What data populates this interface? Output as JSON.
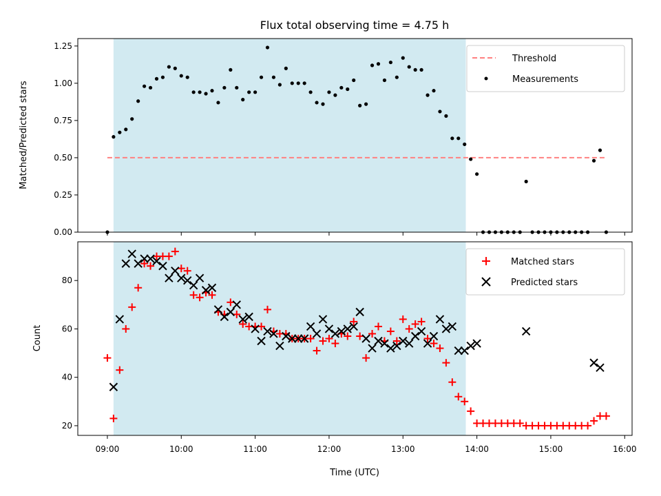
{
  "chart_data": {
    "title": "Flux total observing time = 4.75 h",
    "xlabel": "Time (UTC)",
    "x_unit": "hours UTC",
    "x_ticks": [
      "09:00",
      "10:00",
      "11:00",
      "12:00",
      "13:00",
      "14:00",
      "15:00",
      "16:00"
    ],
    "xlim": [
      "08:36",
      "16:06"
    ],
    "shaded_interval": [
      "09:05",
      "13:51"
    ],
    "colors": {
      "shade": "#add8e6",
      "threshold": "#ff8080",
      "measurements": "#000000",
      "matched": "#ff0000",
      "predicted": "#000000"
    },
    "panels": [
      {
        "type": "scatter",
        "ylabel": "Matched/Predicted stars",
        "ylim": [
          0,
          1.3
        ],
        "y_ticks": [
          "0.00",
          "0.25",
          "0.50",
          "0.75",
          "1.00",
          "1.25"
        ],
        "legend_position": "top-right",
        "series": [
          {
            "name": "Threshold",
            "kind": "dashed-line",
            "x": [
              "09:00",
              "15:45"
            ],
            "y": [
              0.5,
              0.5
            ]
          },
          {
            "name": "Measurements",
            "kind": "dot",
            "x": [
              "09:00",
              "09:05",
              "09:10",
              "09:15",
              "09:20",
              "09:25",
              "09:30",
              "09:35",
              "09:40",
              "09:45",
              "09:50",
              "09:55",
              "10:00",
              "10:05",
              "10:10",
              "10:15",
              "10:20",
              "10:25",
              "10:30",
              "10:35",
              "10:40",
              "10:45",
              "10:50",
              "10:55",
              "11:00",
              "11:05",
              "11:10",
              "11:15",
              "11:20",
              "11:25",
              "11:30",
              "11:35",
              "11:40",
              "11:45",
              "11:50",
              "11:55",
              "12:00",
              "12:05",
              "12:10",
              "12:15",
              "12:20",
              "12:25",
              "12:30",
              "12:35",
              "12:40",
              "12:45",
              "12:50",
              "12:55",
              "13:00",
              "13:05",
              "13:10",
              "13:15",
              "13:20",
              "13:25",
              "13:30",
              "13:35",
              "13:40",
              "13:45",
              "13:50",
              "13:55",
              "14:00",
              "14:05",
              "14:10",
              "14:15",
              "14:20",
              "14:25",
              "14:30",
              "14:35",
              "14:40",
              "14:45",
              "14:50",
              "14:55",
              "15:00",
              "15:05",
              "15:10",
              "15:15",
              "15:20",
              "15:25",
              "15:30",
              "15:35",
              "15:40",
              "15:45"
            ],
            "y": [
              0.0,
              0.64,
              0.67,
              0.69,
              0.76,
              0.88,
              0.98,
              0.97,
              1.03,
              1.04,
              1.11,
              1.1,
              1.05,
              1.04,
              0.94,
              0.94,
              0.93,
              0.95,
              0.87,
              0.97,
              1.09,
              0.97,
              0.89,
              0.94,
              0.94,
              1.04,
              1.24,
              1.04,
              0.99,
              1.1,
              1.0,
              1.0,
              1.0,
              0.94,
              0.87,
              0.86,
              0.94,
              0.92,
              0.97,
              0.96,
              1.02,
              0.85,
              0.86,
              1.12,
              1.13,
              1.02,
              1.14,
              1.04,
              1.17,
              1.11,
              1.09,
              1.09,
              0.92,
              0.95,
              0.81,
              0.78,
              0.63,
              0.63,
              0.59,
              0.49,
              0.39,
              0.0,
              0.0,
              0.0,
              0.0,
              0.0,
              0.0,
              0.0,
              0.34,
              0.0,
              0.0,
              0.0,
              0.0,
              0.0,
              0.0,
              0.0,
              0.0,
              0.0,
              0.0,
              0.48,
              0.55,
              0.0
            ]
          }
        ]
      },
      {
        "type": "scatter",
        "ylabel": "Count",
        "ylim": [
          16,
          96
        ],
        "y_ticks": [
          "20",
          "40",
          "60",
          "80"
        ],
        "legend_position": "top-right",
        "series": [
          {
            "name": "Matched stars",
            "marker": "plus",
            "x": [
              "09:00",
              "09:05",
              "09:10",
              "09:15",
              "09:20",
              "09:25",
              "09:30",
              "09:35",
              "09:40",
              "09:45",
              "09:50",
              "09:55",
              "10:00",
              "10:05",
              "10:10",
              "10:15",
              "10:20",
              "10:25",
              "10:30",
              "10:35",
              "10:40",
              "10:45",
              "10:50",
              "10:55",
              "11:00",
              "11:05",
              "11:10",
              "11:15",
              "11:20",
              "11:25",
              "11:30",
              "11:35",
              "11:40",
              "11:45",
              "11:50",
              "11:55",
              "12:00",
              "12:05",
              "12:10",
              "12:15",
              "12:20",
              "12:25",
              "12:30",
              "12:35",
              "12:40",
              "12:45",
              "12:50",
              "12:55",
              "13:00",
              "13:05",
              "13:10",
              "13:15",
              "13:20",
              "13:25",
              "13:30",
              "13:35",
              "13:40",
              "13:45",
              "13:50",
              "13:55",
              "14:00",
              "14:05",
              "14:10",
              "14:15",
              "14:20",
              "14:25",
              "14:30",
              "14:35",
              "14:40",
              "14:45",
              "14:50",
              "14:55",
              "15:00",
              "15:05",
              "15:10",
              "15:15",
              "15:20",
              "15:25",
              "15:30",
              "15:35",
              "15:40",
              "15:45"
            ],
            "y": [
              48,
              23,
              43,
              60,
              69,
              77,
              87,
              86,
              90,
              90,
              90,
              92,
              85,
              84,
              74,
              73,
              75,
              74,
              67,
              66,
              71,
              66,
              62,
              61,
              61,
              61,
              68,
              59,
              58,
              58,
              56,
              56,
              56,
              56,
              51,
              55,
              56,
              54,
              58,
              57,
              63,
              57,
              48,
              58,
              61,
              55,
              59,
              55,
              64,
              60,
              62,
              63,
              56,
              54,
              52,
              46,
              38,
              32,
              30,
              26,
              21,
              21,
              21,
              21,
              21,
              21,
              21,
              21,
              20,
              20,
              20,
              20,
              20,
              20,
              20,
              20,
              20,
              20,
              20,
              22,
              24,
              24
            ]
          },
          {
            "name": "Predicted stars",
            "marker": "x",
            "x": [
              "09:05",
              "09:10",
              "09:15",
              "09:20",
              "09:25",
              "09:30",
              "09:35",
              "09:40",
              "09:45",
              "09:50",
              "09:55",
              "10:00",
              "10:05",
              "10:10",
              "10:15",
              "10:20",
              "10:25",
              "10:30",
              "10:35",
              "10:40",
              "10:45",
              "10:50",
              "10:55",
              "11:00",
              "11:05",
              "11:10",
              "11:15",
              "11:20",
              "11:25",
              "11:30",
              "11:35",
              "11:40",
              "11:45",
              "11:50",
              "11:55",
              "12:00",
              "12:05",
              "12:10",
              "12:15",
              "12:20",
              "12:25",
              "12:30",
              "12:35",
              "12:40",
              "12:45",
              "12:50",
              "12:55",
              "13:00",
              "13:05",
              "13:10",
              "13:15",
              "13:20",
              "13:25",
              "13:30",
              "13:35",
              "13:40",
              "13:45",
              "13:50",
              "13:55",
              "14:00",
              "14:40",
              "15:35",
              "15:40"
            ],
            "y": [
              36,
              64,
              87,
              91,
              87,
              89,
              89,
              88,
              86,
              81,
              84,
              81,
              80,
              78,
              81,
              76,
              77,
              68,
              65,
              67,
              70,
              64,
              65,
              60,
              55,
              59,
              58,
              53,
              57,
              56,
              56,
              56,
              61,
              58,
              64,
              60,
              58,
              59,
              60,
              61,
              67,
              56,
              52,
              55,
              54,
              52,
              53,
              55,
              54,
              57,
              59,
              54,
              57,
              64,
              60,
              61,
              51,
              51,
              53,
              54,
              59,
              46,
              44
            ]
          }
        ]
      }
    ]
  }
}
